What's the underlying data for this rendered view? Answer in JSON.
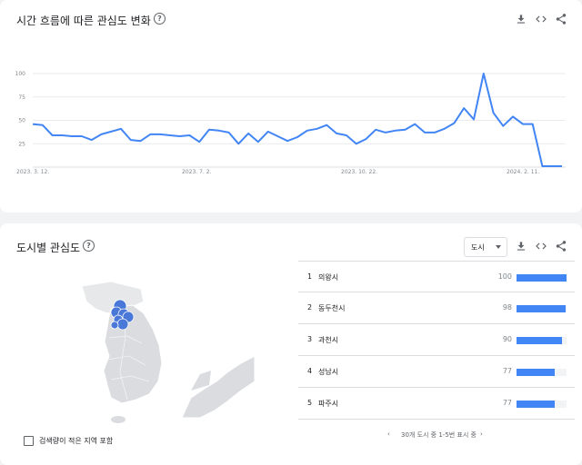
{
  "interest_over_time": {
    "title": "시간 흐름에 따른 관심도 변화",
    "help": "?"
  },
  "chart_data": {
    "type": "line",
    "x_tick_labels": [
      "2023. 3. 12.",
      "2023. 7. 2.",
      "2023. 10. 22.",
      "2024. 2. 11."
    ],
    "y_ticks": [
      25,
      50,
      75,
      100
    ],
    "ylim": [
      0,
      100
    ],
    "color": "#4285f4",
    "grid": true,
    "series": [
      {
        "values": [
          46,
          45,
          34,
          34,
          33,
          33,
          29,
          35,
          38,
          41,
          29,
          28,
          35,
          35,
          34,
          33,
          34,
          27,
          40,
          39,
          37,
          25,
          36,
          27,
          38,
          33,
          28,
          32,
          39,
          41,
          45,
          36,
          34,
          25,
          30,
          40,
          37,
          39,
          40,
          46,
          37,
          37,
          41,
          47,
          63,
          51,
          100,
          58,
          44,
          54,
          46,
          46,
          1,
          1,
          1
        ]
      }
    ]
  },
  "interest_by_region": {
    "title": "도시별 관심도",
    "help": "?",
    "resolution_label": "도시",
    "rows": [
      {
        "rank": "1",
        "name": "의왕시",
        "value": "100",
        "level": 100
      },
      {
        "rank": "2",
        "name": "동두천시",
        "value": "98",
        "level": 98
      },
      {
        "rank": "3",
        "name": "과천시",
        "value": "90",
        "level": 90
      },
      {
        "rank": "4",
        "name": "성남시",
        "value": "77",
        "level": 77
      },
      {
        "rank": "5",
        "name": "파주시",
        "value": "77",
        "level": 77
      }
    ],
    "pagination": "30개 도시 중 1-5번 표시 중",
    "low_volume_label": "검색량이 적은 지역 포함"
  },
  "icons": [
    "download-icon",
    "embed-icon",
    "share-icon",
    "help-icon",
    "chevron-left-icon",
    "chevron-right-icon",
    "map-marker-icon"
  ],
  "colors": {
    "accent": "#4285f4",
    "map_land": "#dadce0",
    "map_marker": "#4a78d8"
  }
}
